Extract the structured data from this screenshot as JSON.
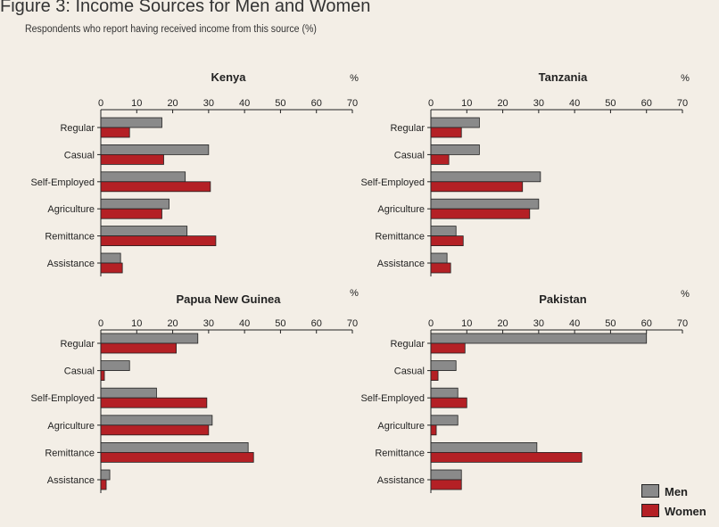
{
  "figure": {
    "title": "Figure 3: Income Sources for Men and Women",
    "subtitle": "Respondents who report having received income from this source (%)"
  },
  "colors": {
    "men": "#8a8a8a",
    "women": "#b42025"
  },
  "legend": {
    "men": "Men",
    "women": "Women"
  },
  "chart_data": [
    {
      "type": "bar",
      "orientation": "horizontal",
      "title": "Kenya",
      "unit_label": "%",
      "categories": [
        "Regular",
        "Casual",
        "Self-Employed",
        "Agriculture",
        "Remittance",
        "Assistance"
      ],
      "series": [
        {
          "name": "Men",
          "values": [
            17,
            30,
            23.5,
            19,
            24,
            5.5
          ]
        },
        {
          "name": "Women",
          "values": [
            8,
            17.5,
            30.5,
            17,
            32,
            6
          ]
        }
      ],
      "xlim": [
        0,
        70
      ],
      "xticks": [
        0,
        10,
        20,
        30,
        40,
        50,
        60,
        70
      ],
      "grid": false
    },
    {
      "type": "bar",
      "orientation": "horizontal",
      "title": "Tanzania",
      "unit_label": "%",
      "categories": [
        "Regular",
        "Casual",
        "Self-Employed",
        "Agriculture",
        "Remittance",
        "Assistance"
      ],
      "series": [
        {
          "name": "Men",
          "values": [
            13.5,
            13.5,
            30.5,
            30,
            7,
            4.5
          ]
        },
        {
          "name": "Women",
          "values": [
            8.5,
            5,
            25.5,
            27.5,
            9,
            5.5
          ]
        }
      ],
      "xlim": [
        0,
        70
      ],
      "xticks": [
        0,
        10,
        20,
        30,
        40,
        50,
        60,
        70
      ],
      "grid": false
    },
    {
      "type": "bar",
      "orientation": "horizontal",
      "title": "Papua New Guinea",
      "unit_label": "%",
      "categories": [
        "Regular",
        "Casual",
        "Self-Employed",
        "Agriculture",
        "Remittance",
        "Assistance"
      ],
      "series": [
        {
          "name": "Men",
          "values": [
            27,
            8,
            15.5,
            31,
            41,
            2.5
          ]
        },
        {
          "name": "Women",
          "values": [
            21,
            1,
            29.5,
            30,
            42.5,
            1.5
          ]
        }
      ],
      "xlim": [
        0,
        70
      ],
      "xticks": [
        0,
        10,
        20,
        30,
        40,
        50,
        60,
        70
      ],
      "grid": false
    },
    {
      "type": "bar",
      "orientation": "horizontal",
      "title": "Pakistan",
      "unit_label": "%",
      "categories": [
        "Regular",
        "Casual",
        "Self-Employed",
        "Agriculture",
        "Remittance",
        "Assistance"
      ],
      "series": [
        {
          "name": "Men",
          "values": [
            60,
            7,
            7.5,
            7.5,
            29.5,
            8.5
          ]
        },
        {
          "name": "Women",
          "values": [
            9.5,
            2,
            10,
            1.5,
            42,
            8.5
          ]
        }
      ],
      "xlim": [
        0,
        70
      ],
      "xticks": [
        0,
        10,
        20,
        30,
        40,
        50,
        60,
        70
      ],
      "grid": false
    }
  ]
}
